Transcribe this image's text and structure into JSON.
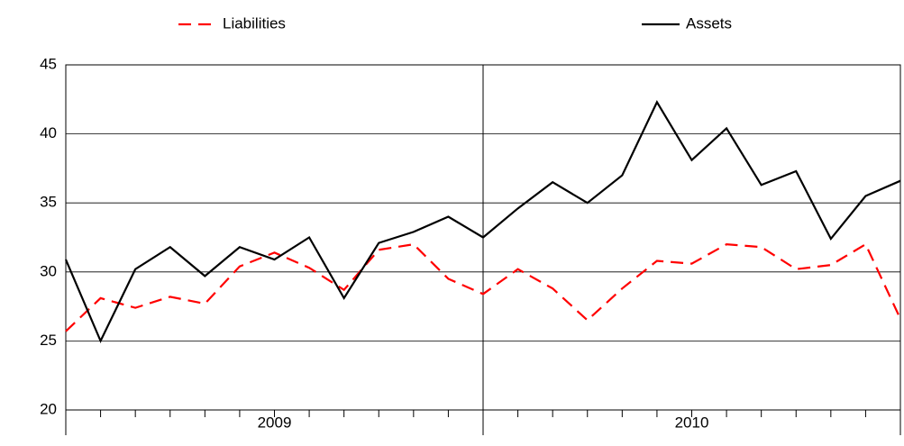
{
  "chart_data": {
    "type": "line",
    "categories": [
      null,
      null,
      null,
      null,
      null,
      null,
      null,
      null,
      null,
      null,
      null,
      null,
      null,
      null,
      null,
      null,
      null,
      null,
      null,
      null,
      null,
      null,
      null,
      null,
      null
    ],
    "x_groups": [
      "2009",
      "2010"
    ],
    "series": [
      {
        "name": "Liabilities",
        "color": "#ff0000",
        "dash": true,
        "values": [
          25.7,
          28.1,
          27.4,
          28.2,
          27.7,
          30.4,
          31.4,
          30.3,
          28.7,
          31.6,
          32.0,
          29.5,
          28.4,
          30.2,
          28.8,
          26.5,
          28.8,
          30.8,
          30.6,
          32.0,
          31.8,
          30.2,
          30.5,
          32.0,
          26.6
        ]
      },
      {
        "name": "Assets",
        "color": "#000000",
        "dash": false,
        "values": [
          30.9,
          25.0,
          30.2,
          31.8,
          29.7,
          31.8,
          30.9,
          32.5,
          28.1,
          32.1,
          32.9,
          34.0,
          32.5,
          34.6,
          36.5,
          35.0,
          37.0,
          42.3,
          38.1,
          40.4,
          36.3,
          37.3,
          32.4,
          35.5,
          36.6
        ]
      }
    ],
    "ylim": [
      20,
      45
    ],
    "yticks": [
      20,
      25,
      30,
      35,
      40,
      45
    ],
    "grid": true
  }
}
